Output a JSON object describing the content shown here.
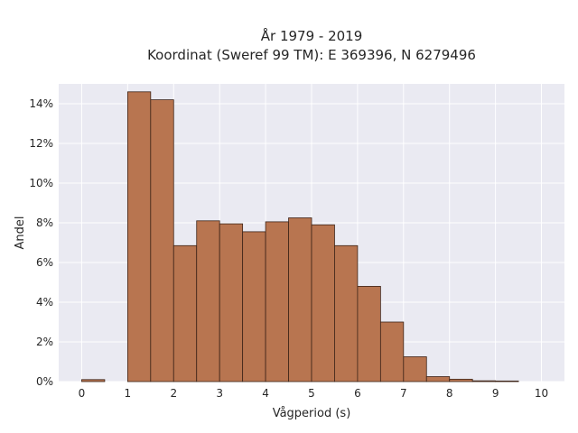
{
  "chart_data": {
    "type": "bar",
    "title_lines": [
      "År 1979 - 2019",
      "Koordinat (Sweref 99 TM): E 369396, N 6279496"
    ],
    "xlabel": "Vågperiod (s)",
    "ylabel": "Andel",
    "x_ticks": [
      "0",
      "1",
      "2",
      "3",
      "4",
      "5",
      "6",
      "7",
      "8",
      "9",
      "10"
    ],
    "y_ticks": [
      "0%",
      "2%",
      "4%",
      "6%",
      "8%",
      "10%",
      "12%",
      "14%"
    ],
    "xlim": [
      -0.5,
      10.5
    ],
    "ylim": [
      0,
      15
    ],
    "bin_width": 0.5,
    "bin_starts": [
      0,
      0.5,
      1,
      1.5,
      2,
      2.5,
      3,
      3.5,
      4,
      4.5,
      5,
      5.5,
      6,
      6.5,
      7,
      7.5,
      8,
      8.5,
      9,
      9.5
    ],
    "values": [
      0.1,
      0,
      14.6,
      14.2,
      6.85,
      8.1,
      7.95,
      7.55,
      8.05,
      8.25,
      7.9,
      6.85,
      4.8,
      3.0,
      1.25,
      0.25,
      0.12,
      0.04,
      0.03,
      0
    ],
    "grid": true,
    "bar_color": "#b87550",
    "bar_edge_color": "#3d2418",
    "plot_bg": "#eaeaf2",
    "grid_color": "#ffffff"
  }
}
